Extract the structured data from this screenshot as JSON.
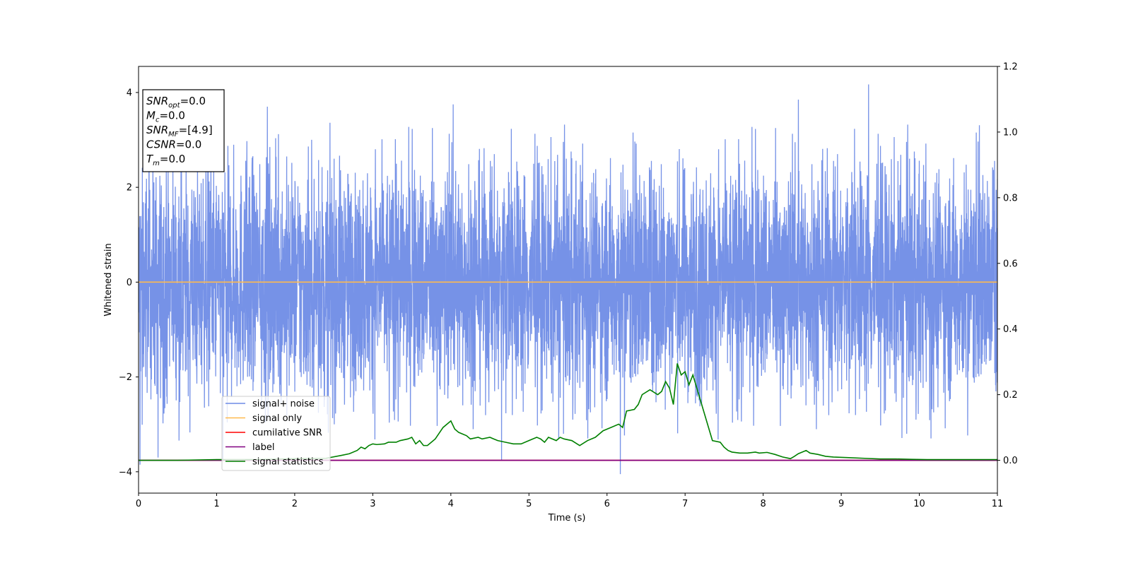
{
  "chart_data": {
    "type": "line",
    "xlabel": "Time (s)",
    "ylabel": "Whitened strain",
    "xlim": [
      0,
      11
    ],
    "ylim": [
      -4.45,
      4.55
    ],
    "y2lim": [
      -0.1,
      1.2
    ],
    "grid": false,
    "legend_position": "lower-left",
    "x_ticks": [
      0,
      1,
      2,
      3,
      4,
      5,
      6,
      7,
      8,
      9,
      10,
      11
    ],
    "x_tick_labels": [
      "0",
      "1",
      "2",
      "3",
      "4",
      "5",
      "6",
      "7",
      "8",
      "9",
      "10",
      "11"
    ],
    "y_ticks": [
      -4,
      -2,
      0,
      2,
      4
    ],
    "y_tick_labels": [
      "−4",
      "−2",
      "0",
      "2",
      "4"
    ],
    "y2_ticks": [
      0.0,
      0.2,
      0.4,
      0.6,
      0.8,
      1.0,
      1.2
    ],
    "y2_tick_labels": [
      "0.0",
      "0.2",
      "0.4",
      "0.6",
      "0.8",
      "1.0",
      "1.2"
    ],
    "info_box": [
      {
        "symbol": "SNR",
        "subscript": "opt",
        "value": "=0.0"
      },
      {
        "symbol": "M",
        "subscript": "c",
        "value": "=0.0"
      },
      {
        "symbol": "SNR",
        "subscript": "MF",
        "value": "=[4.9]"
      },
      {
        "symbol": "CSNR",
        "subscript": "",
        "value": "=0.0"
      },
      {
        "symbol": "T",
        "subscript": "m",
        "value": "=0.0"
      }
    ],
    "series": [
      {
        "name": "signal+ noise",
        "color": "#6f8ce6",
        "axis": "left",
        "kind": "noise",
        "envelope": {
          "typical_abs": 1.9,
          "max": 4.17,
          "min": -4.05
        },
        "spikes": [
          [
            0.02,
            -3.85
          ],
          [
            0.25,
            -3.7
          ],
          [
            1.08,
            -3.75
          ],
          [
            1.65,
            3.7
          ],
          [
            4.03,
            3.75
          ],
          [
            4.65,
            -3.75
          ],
          [
            6.17,
            -4.05
          ],
          [
            8.45,
            3.85
          ],
          [
            9.35,
            4.17
          ],
          [
            10.77,
            3.31
          ]
        ]
      },
      {
        "name": "signal only",
        "color": "#ffb94d",
        "axis": "left",
        "x": [
          0,
          11
        ],
        "values": [
          0,
          0
        ]
      },
      {
        "name": "cumilative SNR",
        "color": "#ff0000",
        "axis": "right",
        "x": [
          0,
          11
        ],
        "values": [
          0,
          0
        ]
      },
      {
        "name": "label",
        "color": "#800080",
        "axis": "right",
        "x": [
          0,
          11
        ],
        "values": [
          0,
          0
        ]
      },
      {
        "name": "signal statistics",
        "color": "#008000",
        "axis": "right",
        "x": [
          0,
          0.5,
          1.0,
          1.5,
          2.0,
          2.4,
          2.6,
          2.7,
          2.8,
          2.85,
          2.9,
          2.95,
          3.0,
          3.05,
          3.15,
          3.2,
          3.3,
          3.35,
          3.45,
          3.5,
          3.55,
          3.6,
          3.65,
          3.7,
          3.75,
          3.8,
          3.9,
          4.0,
          4.05,
          4.1,
          4.2,
          4.25,
          4.35,
          4.4,
          4.5,
          4.55,
          4.6,
          4.7,
          4.8,
          4.9,
          5.0,
          5.1,
          5.15,
          5.2,
          5.25,
          5.35,
          5.4,
          5.45,
          5.55,
          5.65,
          5.75,
          5.85,
          5.95,
          6.05,
          6.15,
          6.2,
          6.25,
          6.35,
          6.4,
          6.45,
          6.55,
          6.65,
          6.7,
          6.75,
          6.8,
          6.85,
          6.9,
          6.95,
          7.0,
          7.05,
          7.1,
          7.15,
          7.2,
          7.25,
          7.35,
          7.45,
          7.5,
          7.55,
          7.6,
          7.7,
          7.8,
          7.9,
          7.95,
          8.05,
          8.15,
          8.25,
          8.35,
          8.4,
          8.45,
          8.55,
          8.6,
          8.7,
          8.8,
          8.9,
          9.1,
          9.3,
          9.5,
          9.7,
          9.9,
          10.1,
          10.5,
          11.0
        ],
        "values": [
          0.0,
          0.0,
          0.002,
          0.002,
          0.005,
          0.006,
          0.015,
          0.02,
          0.03,
          0.04,
          0.035,
          0.045,
          0.05,
          0.048,
          0.05,
          0.055,
          0.055,
          0.06,
          0.065,
          0.07,
          0.05,
          0.06,
          0.045,
          0.045,
          0.055,
          0.065,
          0.1,
          0.12,
          0.095,
          0.085,
          0.075,
          0.065,
          0.07,
          0.065,
          0.07,
          0.065,
          0.06,
          0.055,
          0.05,
          0.05,
          0.06,
          0.07,
          0.065,
          0.055,
          0.07,
          0.06,
          0.07,
          0.065,
          0.06,
          0.045,
          0.06,
          0.07,
          0.09,
          0.1,
          0.11,
          0.1,
          0.15,
          0.155,
          0.17,
          0.2,
          0.215,
          0.2,
          0.21,
          0.24,
          0.22,
          0.17,
          0.295,
          0.26,
          0.27,
          0.23,
          0.26,
          0.22,
          0.18,
          0.14,
          0.06,
          0.055,
          0.04,
          0.03,
          0.025,
          0.022,
          0.022,
          0.025,
          0.022,
          0.024,
          0.018,
          0.01,
          0.005,
          0.012,
          0.02,
          0.03,
          0.022,
          0.018,
          0.012,
          0.01,
          0.008,
          0.006,
          0.004,
          0.004,
          0.003,
          0.002,
          0.002,
          0.002
        ]
      }
    ]
  }
}
